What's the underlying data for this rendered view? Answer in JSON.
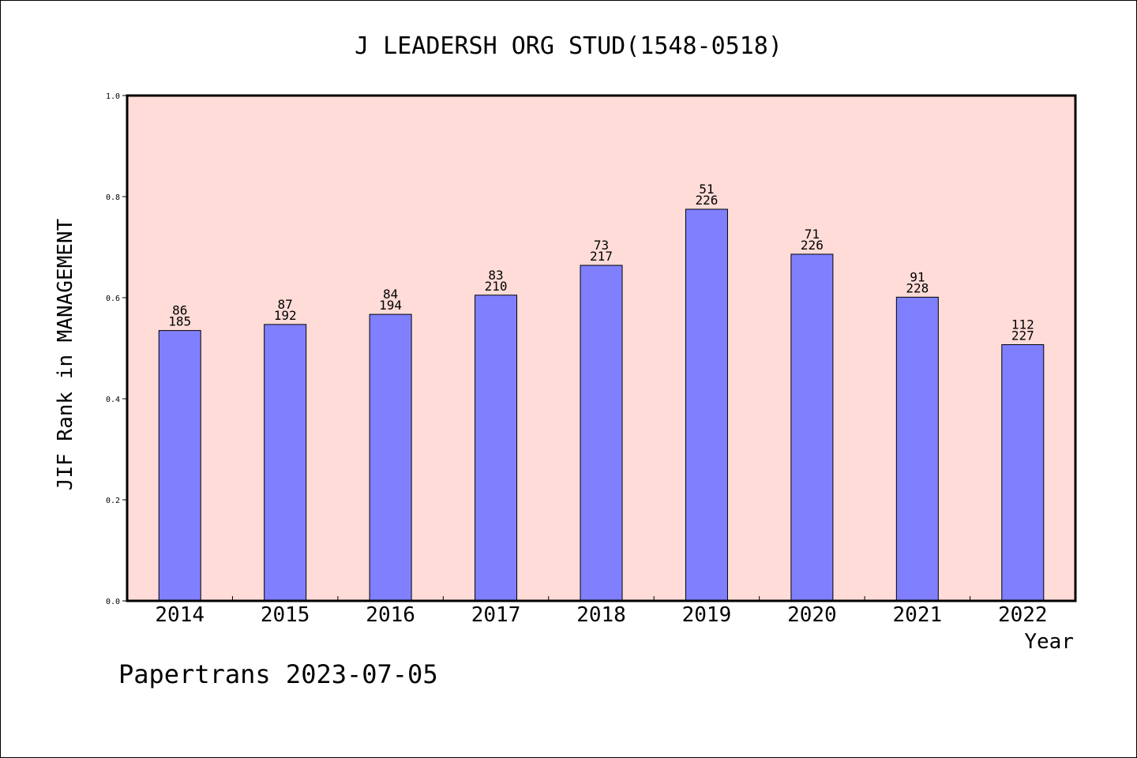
{
  "chart_data": {
    "type": "bar",
    "title": "J LEADERSH ORG STUD(1548-0518)",
    "xlabel": "Year",
    "ylabel": "JIF Rank in MANAGEMENT",
    "ylim": [
      0,
      1.0
    ],
    "yticks": [
      "0.0",
      "0.2",
      "0.4",
      "0.6",
      "0.8",
      "1.0"
    ],
    "categories": [
      "2014",
      "2015",
      "2016",
      "2017",
      "2018",
      "2019",
      "2020",
      "2021",
      "2022"
    ],
    "values": [
      0.535,
      0.547,
      0.567,
      0.605,
      0.664,
      0.775,
      0.686,
      0.601,
      0.507
    ],
    "rank": [
      "86",
      "87",
      "84",
      "83",
      "73",
      "51",
      "71",
      "91",
      "112"
    ],
    "total": [
      "185",
      "192",
      "194",
      "210",
      "217",
      "226",
      "226",
      "228",
      "227"
    ],
    "grid": false,
    "colors": {
      "plot_background": "#ffdcd8",
      "bar_fill": "#8080ff",
      "bar_stroke": "#000000"
    }
  },
  "footer": "Papertrans 2023-07-05"
}
